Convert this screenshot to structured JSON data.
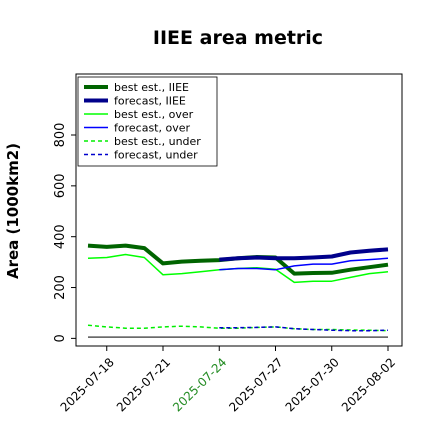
{
  "chart_data": {
    "type": "line",
    "title": "IIEE area metric",
    "xlabel": "",
    "ylabel": "Area (1000km2)",
    "x": [
      "2025-07-17",
      "2025-07-18",
      "2025-07-19",
      "2025-07-20",
      "2025-07-21",
      "2025-07-22",
      "2025-07-23",
      "2025-07-24",
      "2025-07-25",
      "2025-07-26",
      "2025-07-27",
      "2025-07-28",
      "2025-07-29",
      "2025-07-30",
      "2025-07-31",
      "2025-08-01",
      "2025-08-02"
    ],
    "xticks": [
      "2025-07-18",
      "2025-07-21",
      "2025-07-24",
      "2025-07-27",
      "2025-07-30",
      "2025-08-02"
    ],
    "xtick_colors": [
      "#000000",
      "#000000",
      "#228b22",
      "#000000",
      "#000000",
      "#000000"
    ],
    "yticks": [
      0,
      200,
      400,
      600,
      800
    ],
    "ylim": [
      -30,
      1040
    ],
    "grid": false,
    "legend_position": "top-left",
    "series": [
      {
        "name": "best est., IIEE",
        "color": "#006400",
        "width": 4,
        "dash": "",
        "values": [
          365,
          360,
          365,
          355,
          295,
          302,
          305,
          308,
          315,
          320,
          318,
          255,
          257,
          258,
          270,
          280,
          290
        ]
      },
      {
        "name": "forecast, IIEE",
        "color": "#00008b",
        "width": 4,
        "dash": "",
        "values": [
          null,
          null,
          null,
          null,
          null,
          null,
          null,
          310,
          315,
          318,
          315,
          315,
          318,
          322,
          338,
          345,
          350
        ]
      },
      {
        "name": "best est., over",
        "color": "#00ff00",
        "width": 1.5,
        "dash": "",
        "values": [
          315,
          318,
          330,
          318,
          250,
          255,
          262,
          270,
          275,
          278,
          272,
          220,
          225,
          225,
          240,
          255,
          262
        ]
      },
      {
        "name": "forecast, over",
        "color": "#0000ff",
        "width": 1.5,
        "dash": "",
        "values": [
          null,
          null,
          null,
          null,
          null,
          null,
          null,
          270,
          275,
          275,
          270,
          285,
          292,
          292,
          305,
          310,
          315
        ]
      },
      {
        "name": "best est., under",
        "color": "#00ee00",
        "width": 1.5,
        "dash": "4,3",
        "values": [
          52,
          45,
          40,
          40,
          45,
          48,
          45,
          40,
          40,
          43,
          45,
          38,
          35,
          35,
          33,
          32,
          30
        ]
      },
      {
        "name": "forecast, under",
        "color": "#0000cd",
        "width": 1.5,
        "dash": "4,3",
        "values": [
          null,
          null,
          null,
          null,
          null,
          null,
          null,
          42,
          42,
          43,
          45,
          38,
          35,
          32,
          30,
          30,
          32
        ]
      },
      {
        "name": "",
        "color": "#555555",
        "width": 1.5,
        "dash": "",
        "values": [
          5,
          5,
          5,
          5,
          5,
          5,
          5,
          5,
          5,
          5,
          5,
          5,
          5,
          5,
          5,
          5,
          5
        ]
      }
    ]
  }
}
